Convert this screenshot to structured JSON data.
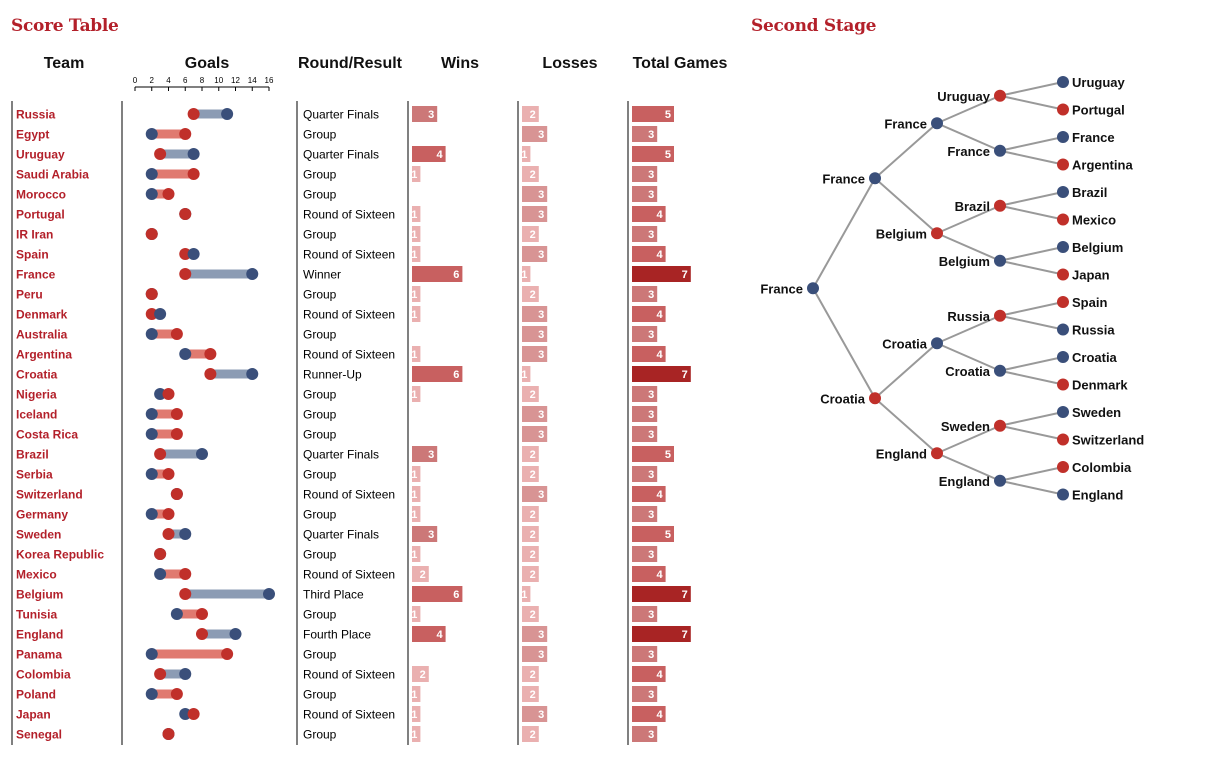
{
  "titles": {
    "score_table": "Score Table",
    "second_stage": "Second Stage"
  },
  "headers": {
    "team": "Team",
    "goals": "Goals",
    "round": "Round/Result",
    "wins": "Wins",
    "losses": "Losses",
    "total": "Total Games"
  },
  "colors": {
    "title_red": "#b3202a",
    "team_red": "#b3202a",
    "goals_scored_dot": "#3a4f7a",
    "goals_conceded_dot": "#c0302a",
    "bar_low": "#eab0b0",
    "bar_mid": "#c86060",
    "bar_high": "#a82424"
  },
  "chart_data": [
    {
      "type": "table",
      "title": "Score Table",
      "goals_axis": {
        "ticks": [
          0,
          2,
          4,
          6,
          8,
          10,
          12,
          14,
          16
        ],
        "range": [
          0,
          16
        ]
      },
      "rows": [
        {
          "team": "Russia",
          "scored": 11,
          "conceded": 7,
          "round": "Quarter Finals",
          "wins": 3,
          "losses": 2,
          "total": 5
        },
        {
          "team": "Egypt",
          "scored": 2,
          "conceded": 6,
          "round": "Group",
          "wins": 0,
          "losses": 3,
          "total": 3
        },
        {
          "team": "Uruguay",
          "scored": 7,
          "conceded": 3,
          "round": "Quarter Finals",
          "wins": 4,
          "losses": 1,
          "total": 5
        },
        {
          "team": "Saudi Arabia",
          "scored": 2,
          "conceded": 7,
          "round": "Group",
          "wins": 1,
          "losses": 2,
          "total": 3
        },
        {
          "team": "Morocco",
          "scored": 2,
          "conceded": 4,
          "round": "Group",
          "wins": 0,
          "losses": 3,
          "total": 3
        },
        {
          "team": "Portugal",
          "scored": 6,
          "conceded": 6,
          "round": "Round of Sixteen",
          "wins": 1,
          "losses": 3,
          "total": 4
        },
        {
          "team": "IR Iran",
          "scored": 2,
          "conceded": 2,
          "round": "Group",
          "wins": 1,
          "losses": 2,
          "total": 3
        },
        {
          "team": "Spain",
          "scored": 7,
          "conceded": 6,
          "round": "Round of Sixteen",
          "wins": 1,
          "losses": 3,
          "total": 4
        },
        {
          "team": "France",
          "scored": 14,
          "conceded": 6,
          "round": "Winner",
          "wins": 6,
          "losses": 1,
          "total": 7
        },
        {
          "team": "Peru",
          "scored": 2,
          "conceded": 2,
          "round": "Group",
          "wins": 1,
          "losses": 2,
          "total": 3
        },
        {
          "team": "Denmark",
          "scored": 3,
          "conceded": 2,
          "round": "Round of Sixteen",
          "wins": 1,
          "losses": 3,
          "total": 4
        },
        {
          "team": "Australia",
          "scored": 2,
          "conceded": 5,
          "round": "Group",
          "wins": 0,
          "losses": 3,
          "total": 3
        },
        {
          "team": "Argentina",
          "scored": 6,
          "conceded": 9,
          "round": "Round of Sixteen",
          "wins": 1,
          "losses": 3,
          "total": 4
        },
        {
          "team": "Croatia",
          "scored": 14,
          "conceded": 9,
          "round": "Runner-Up",
          "wins": 6,
          "losses": 1,
          "total": 7
        },
        {
          "team": "Nigeria",
          "scored": 3,
          "conceded": 4,
          "round": "Group",
          "wins": 1,
          "losses": 2,
          "total": 3
        },
        {
          "team": "Iceland",
          "scored": 2,
          "conceded": 5,
          "round": "Group",
          "wins": 0,
          "losses": 3,
          "total": 3
        },
        {
          "team": "Costa Rica",
          "scored": 2,
          "conceded": 5,
          "round": "Group",
          "wins": 0,
          "losses": 3,
          "total": 3
        },
        {
          "team": "Brazil",
          "scored": 8,
          "conceded": 3,
          "round": "Quarter Finals",
          "wins": 3,
          "losses": 2,
          "total": 5
        },
        {
          "team": "Serbia",
          "scored": 2,
          "conceded": 4,
          "round": "Group",
          "wins": 1,
          "losses": 2,
          "total": 3
        },
        {
          "team": "Switzerland",
          "scored": 5,
          "conceded": 5,
          "round": "Round of Sixteen",
          "wins": 1,
          "losses": 3,
          "total": 4
        },
        {
          "team": "Germany",
          "scored": 2,
          "conceded": 4,
          "round": "Group",
          "wins": 1,
          "losses": 2,
          "total": 3
        },
        {
          "team": "Sweden",
          "scored": 6,
          "conceded": 4,
          "round": "Quarter Finals",
          "wins": 3,
          "losses": 2,
          "total": 5
        },
        {
          "team": "Korea Republic",
          "scored": 3,
          "conceded": 3,
          "round": "Group",
          "wins": 1,
          "losses": 2,
          "total": 3
        },
        {
          "team": "Mexico",
          "scored": 3,
          "conceded": 6,
          "round": "Round of Sixteen",
          "wins": 2,
          "losses": 2,
          "total": 4
        },
        {
          "team": "Belgium",
          "scored": 16,
          "conceded": 6,
          "round": "Third Place",
          "wins": 6,
          "losses": 1,
          "total": 7
        },
        {
          "team": "Tunisia",
          "scored": 5,
          "conceded": 8,
          "round": "Group",
          "wins": 1,
          "losses": 2,
          "total": 3
        },
        {
          "team": "England",
          "scored": 12,
          "conceded": 8,
          "round": "Fourth Place",
          "wins": 4,
          "losses": 3,
          "total": 7
        },
        {
          "team": "Panama",
          "scored": 2,
          "conceded": 11,
          "round": "Group",
          "wins": 0,
          "losses": 3,
          "total": 3
        },
        {
          "team": "Colombia",
          "scored": 6,
          "conceded": 3,
          "round": "Round of Sixteen",
          "wins": 2,
          "losses": 2,
          "total": 4
        },
        {
          "team": "Poland",
          "scored": 2,
          "conceded": 5,
          "round": "Group",
          "wins": 1,
          "losses": 2,
          "total": 3
        },
        {
          "team": "Japan",
          "scored": 6,
          "conceded": 7,
          "round": "Round of Sixteen",
          "wins": 1,
          "losses": 3,
          "total": 4
        },
        {
          "team": "Senegal",
          "scored": 4,
          "conceded": 4,
          "round": "Group",
          "wins": 1,
          "losses": 2,
          "total": 3
        }
      ]
    },
    {
      "type": "tree",
      "title": "Second Stage",
      "root": {
        "name": "France",
        "won": true,
        "children": [
          {
            "name": "France",
            "won": true,
            "children": [
              {
                "name": "France",
                "won": true,
                "children": [
                  {
                    "name": "Uruguay",
                    "won": false,
                    "children": [
                      {
                        "name": "Uruguay",
                        "won": true
                      },
                      {
                        "name": "Portugal",
                        "won": false
                      }
                    ]
                  },
                  {
                    "name": "France",
                    "won": true,
                    "children": [
                      {
                        "name": "France",
                        "won": true
                      },
                      {
                        "name": "Argentina",
                        "won": false
                      }
                    ]
                  }
                ]
              },
              {
                "name": "Belgium",
                "won": false,
                "children": [
                  {
                    "name": "Brazil",
                    "won": false,
                    "children": [
                      {
                        "name": "Brazil",
                        "won": true
                      },
                      {
                        "name": "Mexico",
                        "won": false
                      }
                    ]
                  },
                  {
                    "name": "Belgium",
                    "won": true,
                    "children": [
                      {
                        "name": "Belgium",
                        "won": true
                      },
                      {
                        "name": "Japan",
                        "won": false
                      }
                    ]
                  }
                ]
              }
            ]
          },
          {
            "name": "Croatia",
            "won": false,
            "children": [
              {
                "name": "Croatia",
                "won": true,
                "children": [
                  {
                    "name": "Russia",
                    "won": false,
                    "children": [
                      {
                        "name": "Spain",
                        "won": false
                      },
                      {
                        "name": "Russia",
                        "won": true
                      }
                    ]
                  },
                  {
                    "name": "Croatia",
                    "won": true,
                    "children": [
                      {
                        "name": "Croatia",
                        "won": true
                      },
                      {
                        "name": "Denmark",
                        "won": false
                      }
                    ]
                  }
                ]
              },
              {
                "name": "England",
                "won": false,
                "children": [
                  {
                    "name": "Sweden",
                    "won": false,
                    "children": [
                      {
                        "name": "Sweden",
                        "won": true
                      },
                      {
                        "name": "Switzerland",
                        "won": false
                      }
                    ]
                  },
                  {
                    "name": "England",
                    "won": true,
                    "children": [
                      {
                        "name": "Colombia",
                        "won": false
                      },
                      {
                        "name": "England",
                        "won": true
                      }
                    ]
                  }
                ]
              }
            ]
          }
        ]
      }
    }
  ]
}
